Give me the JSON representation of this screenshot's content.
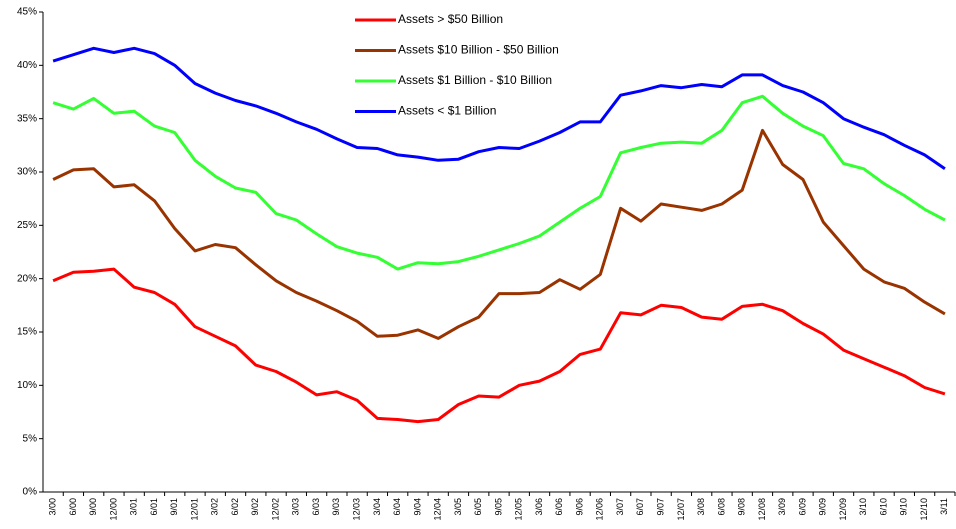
{
  "chart_data": {
    "type": "line",
    "categories": [
      "3/00",
      "6/00",
      "9/00",
      "12/00",
      "3/01",
      "6/01",
      "9/01",
      "12/01",
      "3/02",
      "6/02",
      "9/02",
      "12/02",
      "3/03",
      "6/03",
      "9/03",
      "12/03",
      "3/04",
      "6/04",
      "9/04",
      "12/04",
      "3/05",
      "6/05",
      "9/05",
      "12/05",
      "3/06",
      "6/06",
      "9/06",
      "12/06",
      "3/07",
      "6/07",
      "9/07",
      "12/07",
      "3/08",
      "6/08",
      "9/08",
      "12/08",
      "3/09",
      "6/09",
      "9/09",
      "12/09",
      "3/10",
      "6/10",
      "9/10",
      "12/10",
      "3/11"
    ],
    "series": [
      {
        "name": "Assets > $50 Billion",
        "color": "#ff0000",
        "values": [
          19.8,
          20.6,
          20.7,
          20.9,
          19.2,
          18.7,
          17.6,
          15.5,
          14.6,
          13.7,
          11.9,
          11.3,
          10.3,
          9.1,
          9.4,
          8.6,
          6.9,
          6.8,
          6.6,
          6.8,
          8.2,
          9.0,
          8.9,
          10.0,
          10.4,
          11.3,
          12.9,
          13.4,
          16.8,
          16.6,
          17.5,
          17.3,
          16.4,
          16.2,
          17.4,
          17.6,
          17.0,
          15.8,
          14.8,
          13.3,
          12.5,
          11.7,
          10.9,
          9.8,
          9.2
        ]
      },
      {
        "name": "Assets $10 Billion - $50 Billion",
        "color": "#993300",
        "values": [
          29.3,
          30.2,
          30.3,
          28.6,
          28.8,
          27.3,
          24.7,
          22.6,
          23.2,
          22.9,
          21.3,
          19.8,
          18.7,
          17.9,
          17.0,
          16.0,
          14.6,
          14.7,
          15.2,
          14.4,
          15.5,
          16.4,
          18.6,
          18.6,
          18.7,
          19.9,
          19.0,
          20.4,
          26.6,
          25.4,
          27.0,
          26.7,
          26.4,
          27.0,
          28.3,
          33.9,
          30.7,
          29.3,
          25.3,
          23.1,
          20.9,
          19.7,
          19.1,
          17.8,
          16.7
        ]
      },
      {
        "name": "Assets $1 Billion - $10 Billion",
        "color": "#33ff33",
        "values": [
          36.5,
          35.9,
          36.9,
          35.5,
          35.7,
          34.3,
          33.7,
          31.1,
          29.6,
          28.5,
          28.1,
          26.1,
          25.5,
          24.2,
          23.0,
          22.4,
          22.0,
          20.9,
          21.5,
          21.4,
          21.6,
          22.1,
          22.7,
          23.3,
          24.0,
          25.3,
          26.6,
          27.7,
          31.8,
          32.3,
          32.7,
          32.8,
          32.7,
          33.9,
          36.5,
          37.1,
          35.5,
          34.3,
          33.4,
          30.8,
          30.3,
          28.9,
          27.8,
          26.5,
          25.5
        ]
      },
      {
        "name": "Assets < $1 Billion",
        "color": "#0000ff",
        "values": [
          40.4,
          41.0,
          41.6,
          41.2,
          41.6,
          41.1,
          40.0,
          38.3,
          37.4,
          36.7,
          36.2,
          35.5,
          34.7,
          34.0,
          33.1,
          32.3,
          32.2,
          31.6,
          31.4,
          31.1,
          31.2,
          31.9,
          32.3,
          32.2,
          32.9,
          33.7,
          34.7,
          34.7,
          37.2,
          37.6,
          38.1,
          37.9,
          38.2,
          38.0,
          39.1,
          39.1,
          38.1,
          37.5,
          36.5,
          35.0,
          34.2,
          33.5,
          32.5,
          31.6,
          30.3
        ]
      }
    ],
    "ylim": [
      0,
      45
    ],
    "yticks": [
      {
        "value": 0,
        "label": "0%"
      },
      {
        "value": 5,
        "label": "5%"
      },
      {
        "value": 10,
        "label": "10%"
      },
      {
        "value": 15,
        "label": "15%"
      },
      {
        "value": 20,
        "label": "20%"
      },
      {
        "value": 25,
        "label": "25%"
      },
      {
        "value": 30,
        "label": "30%"
      },
      {
        "value": 35,
        "label": "35%"
      },
      {
        "value": 40,
        "label": "40%"
      },
      {
        "value": 45,
        "label": "45%"
      }
    ],
    "grid": false
  }
}
